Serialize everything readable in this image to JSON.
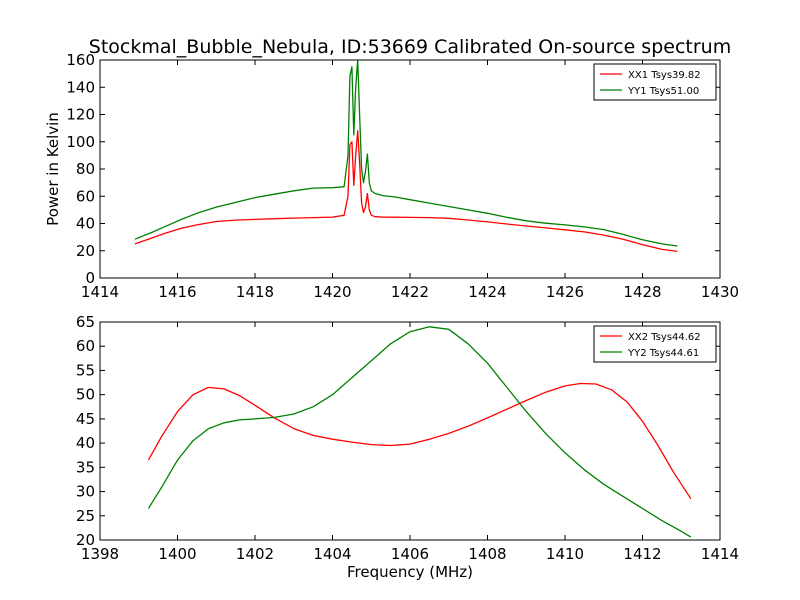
{
  "figure": {
    "title": "Stockmal_Bubble_Nebula, ID:53669 Calibrated On-source spectrum"
  },
  "chart_data": [
    {
      "type": "line",
      "title": "Stockmal_Bubble_Nebula, ID:53669 Calibrated On-source spectrum",
      "xlabel": "",
      "ylabel": "Power in Kelvin",
      "xlim": [
        1414,
        1430
      ],
      "ylim": [
        0,
        160
      ],
      "xticks": [
        "1414",
        "1416",
        "1418",
        "1420",
        "1422",
        "1424",
        "1426",
        "1428",
        "1430"
      ],
      "yticks": [
        "0",
        "20",
        "40",
        "60",
        "80",
        "100",
        "120",
        "140",
        "160"
      ],
      "grid": false,
      "legend_position": "top-right",
      "series": [
        {
          "name": "XX1 Tsys39.82",
          "color": "#ff0000",
          "x": [
            1414.9,
            1415.3,
            1415.7,
            1416.1,
            1416.5,
            1417.0,
            1417.5,
            1418.0,
            1418.5,
            1419.0,
            1419.5,
            1420.0,
            1420.3,
            1420.4,
            1420.45,
            1420.5,
            1420.55,
            1420.6,
            1420.65,
            1420.7,
            1420.75,
            1420.8,
            1420.85,
            1420.9,
            1420.95,
            1421.0,
            1421.1,
            1421.3,
            1421.6,
            1422.0,
            1422.5,
            1423.0,
            1423.5,
            1424.0,
            1424.5,
            1425.0,
            1425.5,
            1426.0,
            1426.5,
            1427.0,
            1427.5,
            1428.0,
            1428.5,
            1428.9
          ],
          "y": [
            25,
            29,
            33,
            36.5,
            39,
            41.5,
            42.5,
            43,
            43.5,
            44,
            44.3,
            44.7,
            46,
            60,
            98,
            100,
            68,
            90,
            108,
            85,
            55,
            48,
            52,
            62,
            50,
            46,
            45,
            44.7,
            44.6,
            44.5,
            44.3,
            43.8,
            42.6,
            41.2,
            39.6,
            38.2,
            36.8,
            35.4,
            33.8,
            31.5,
            28.5,
            24.5,
            21,
            19.5
          ]
        },
        {
          "name": "YY1 Tsys51.00",
          "color": "#008000",
          "x": [
            1414.9,
            1415.3,
            1415.7,
            1416.1,
            1416.5,
            1417.0,
            1417.5,
            1418.0,
            1418.5,
            1419.0,
            1419.5,
            1420.0,
            1420.3,
            1420.4,
            1420.45,
            1420.5,
            1420.55,
            1420.6,
            1420.65,
            1420.7,
            1420.75,
            1420.8,
            1420.85,
            1420.9,
            1420.95,
            1421.0,
            1421.1,
            1421.3,
            1421.6,
            1422.0,
            1422.5,
            1423.0,
            1423.5,
            1424.0,
            1424.5,
            1425.0,
            1425.5,
            1426.0,
            1426.5,
            1427.0,
            1427.5,
            1428.0,
            1428.5,
            1428.9
          ],
          "y": [
            28.5,
            33,
            38,
            43,
            47.5,
            52,
            55.5,
            59,
            61.5,
            64,
            66,
            66.3,
            67,
            90,
            148,
            155,
            105,
            140,
            160,
            120,
            80,
            70,
            78,
            91,
            70,
            64,
            62,
            60.5,
            59.5,
            57.5,
            55,
            52.5,
            50,
            47.5,
            44.5,
            42,
            40.2,
            39,
            37.5,
            35.5,
            32,
            28,
            25,
            23.5
          ]
        }
      ]
    },
    {
      "type": "line",
      "title": "",
      "xlabel": "Frequency (MHz)",
      "ylabel": "",
      "xlim": [
        1398,
        1414
      ],
      "ylim": [
        20,
        65
      ],
      "xticks": [
        "1398",
        "1400",
        "1402",
        "1404",
        "1406",
        "1408",
        "1410",
        "1412",
        "1414"
      ],
      "yticks": [
        "20",
        "25",
        "30",
        "35",
        "40",
        "45",
        "50",
        "55",
        "60",
        "65"
      ],
      "grid": false,
      "legend_position": "top-right",
      "series": [
        {
          "name": "XX2 Tsys44.62",
          "color": "#ff0000",
          "x": [
            1399.25,
            1399.6,
            1400.0,
            1400.4,
            1400.8,
            1401.2,
            1401.6,
            1402.0,
            1402.5,
            1403.0,
            1403.5,
            1404.0,
            1404.5,
            1405.0,
            1405.5,
            1406.0,
            1406.5,
            1407.0,
            1407.5,
            1408.0,
            1408.5,
            1409.0,
            1409.5,
            1410.0,
            1410.4,
            1410.8,
            1411.2,
            1411.6,
            1412.0,
            1412.4,
            1412.8,
            1413.25
          ],
          "y": [
            36.5,
            41.5,
            46.5,
            50,
            51.5,
            51.2,
            49.8,
            47.8,
            45.2,
            43,
            41.6,
            40.8,
            40.2,
            39.7,
            39.5,
            39.8,
            40.8,
            42,
            43.5,
            45.2,
            47,
            48.8,
            50.5,
            51.8,
            52.3,
            52.2,
            51,
            48.5,
            44.5,
            39.5,
            34,
            28.5
          ]
        },
        {
          "name": "YY2 Tsys44.61",
          "color": "#008000",
          "x": [
            1399.25,
            1399.6,
            1400.0,
            1400.4,
            1400.8,
            1401.2,
            1401.6,
            1402.0,
            1402.5,
            1403.0,
            1403.5,
            1404.0,
            1404.5,
            1405.0,
            1405.5,
            1406.0,
            1406.5,
            1407.0,
            1407.5,
            1408.0,
            1408.5,
            1409.0,
            1409.5,
            1410.0,
            1410.5,
            1411.0,
            1411.5,
            1412.0,
            1412.5,
            1413.0,
            1413.25
          ],
          "y": [
            26.5,
            31,
            36.5,
            40.5,
            43,
            44.2,
            44.8,
            45,
            45.3,
            46,
            47.5,
            50,
            53.5,
            57,
            60.5,
            63,
            64,
            63.5,
            60.5,
            56.5,
            51.5,
            46.5,
            42,
            38,
            34.5,
            31.5,
            29,
            26.5,
            24,
            21.8,
            20.6
          ]
        }
      ]
    }
  ]
}
